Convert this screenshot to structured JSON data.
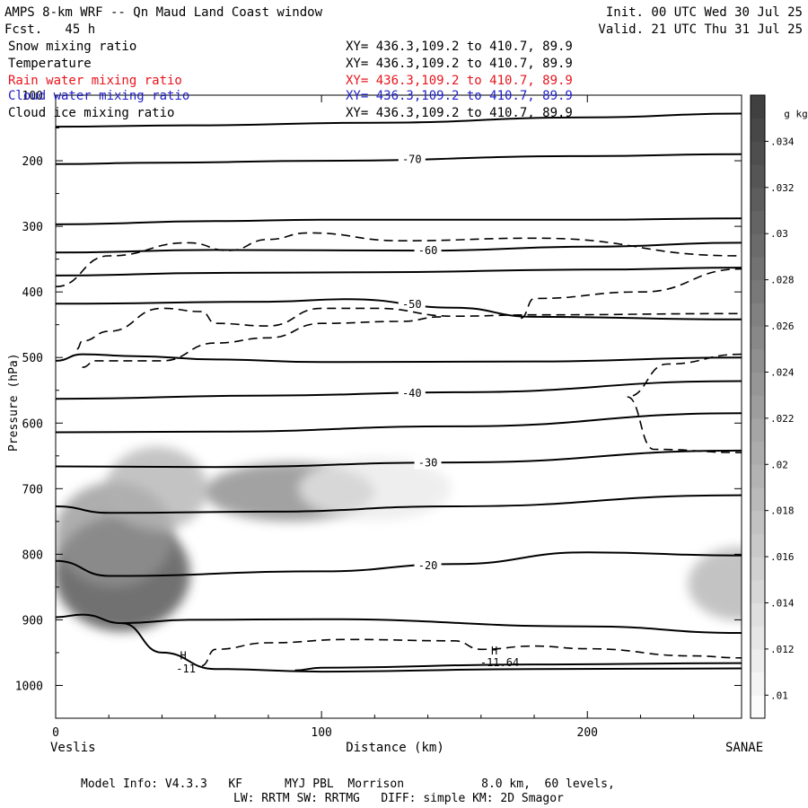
{
  "header": {
    "title_left": "AMPS 8-km WRF -- Qn Maud Land Coast window",
    "init": "Init. 00 UTC Wed 30 Jul 25",
    "fcst": "Fcst.   45 h",
    "valid": "Valid. 21 UTC Thu 31 Jul 25"
  },
  "fields": [
    {
      "name": "Snow mixing ratio",
      "xy": "XY= 436.3,109.2 to 410.7, 89.9",
      "color": "#000000"
    },
    {
      "name": "Temperature",
      "xy": "XY= 436.3,109.2 to 410.7, 89.9",
      "color": "#000000"
    },
    {
      "name": "Rain water mixing ratio",
      "xy": "XY= 436.3,109.2 to 410.7, 89.9",
      "color": "#e8141c"
    },
    {
      "name": "Cloud water mixing ratio",
      "xy": "XY= 436.3,109.2 to 410.7, 89.9",
      "color": "#1e1ec8"
    },
    {
      "name": "Cloud ice mixing ratio",
      "xy": "XY= 436.3,109.2 to 410.7, 89.9",
      "color": "#000000"
    }
  ],
  "footer": {
    "line1": "Model Info: V4.3.3   KF      MYJ PBL  Morrison           8.0 km,  60 levels,",
    "line2": "LW: RRTM SW: RRTMG   DIFF: simple KM: 2D Smagor"
  },
  "chart_data": {
    "type": "heatmap",
    "title": "",
    "xlabel": "Distance (km)",
    "ylabel": "Pressure (hPa)",
    "xlim": [
      0,
      258
    ],
    "ylim": [
      1050,
      100
    ],
    "y_reversed": true,
    "x_ticks": [
      0,
      100,
      200
    ],
    "y_ticks": [
      100,
      200,
      300,
      400,
      500,
      600,
      700,
      800,
      900,
      1000
    ],
    "x_end_labels": {
      "left": "Veslis",
      "right": "SANAE"
    },
    "colorbar": {
      "unit": "g kg",
      "unit_sup": "-1",
      "range": [
        0.009,
        0.036
      ],
      "ticks": [
        ".01",
        ".012",
        ".014",
        ".016",
        ".018",
        ".02",
        ".022",
        ".024",
        ".026",
        ".028",
        ".03",
        ".032",
        ".034"
      ],
      "tick_values": [
        0.01,
        0.012,
        0.014,
        0.016,
        0.018,
        0.02,
        0.022,
        0.024,
        0.026,
        0.028,
        0.03,
        0.032,
        0.034
      ],
      "low_color": "#ffffff",
      "high_color": "#3c3c3c"
    },
    "shaded_snow_mixing_ratio": [
      {
        "x": 25,
        "p": 830,
        "sx": 16,
        "sp": 55,
        "value": 0.035
      },
      {
        "x": 22,
        "p": 770,
        "sx": 14,
        "sp": 50,
        "value": 0.024
      },
      {
        "x": 38,
        "p": 700,
        "sx": 12,
        "sp": 40,
        "value": 0.02
      },
      {
        "x": 88,
        "p": 705,
        "sx": 20,
        "sp": 28,
        "value": 0.026
      },
      {
        "x": 120,
        "p": 700,
        "sx": 18,
        "sp": 30,
        "value": 0.012
      },
      {
        "x": 257,
        "p": 845,
        "sx": 12,
        "sp": 35,
        "value": 0.02
      }
    ],
    "temperature_isotherms": [
      {
        "label": "-70",
        "label_x": 134,
        "points": [
          [
            0,
            205
          ],
          [
            40,
            203
          ],
          [
            100,
            200
          ],
          [
            200,
            193
          ],
          [
            258,
            190
          ]
        ]
      },
      {
        "label": null,
        "label_x": null,
        "points": [
          [
            0,
            148
          ],
          [
            50,
            146
          ],
          [
            120,
            142
          ],
          [
            200,
            134
          ],
          [
            258,
            128
          ]
        ]
      },
      {
        "label": null,
        "label_x": null,
        "points": [
          [
            0,
            297
          ],
          [
            60,
            292
          ],
          [
            100,
            290
          ],
          [
            200,
            290
          ],
          [
            258,
            288
          ]
        ]
      },
      {
        "label": "-60",
        "label_x": 140,
        "points": [
          [
            0,
            340
          ],
          [
            60,
            336
          ],
          [
            140,
            337
          ],
          [
            200,
            331
          ],
          [
            258,
            325
          ]
        ]
      },
      {
        "label": null,
        "label_x": null,
        "points": [
          [
            0,
            375
          ],
          [
            60,
            371
          ],
          [
            120,
            370
          ],
          [
            200,
            366
          ],
          [
            258,
            363
          ]
        ]
      },
      {
        "label": "-50",
        "label_x": 134,
        "points": [
          [
            0,
            418
          ],
          [
            80,
            415
          ],
          [
            110,
            411
          ],
          [
            150,
            424
          ],
          [
            180,
            438
          ],
          [
            258,
            442
          ]
        ]
      },
      {
        "label": null,
        "label_x": null,
        "points": [
          [
            0,
            505
          ],
          [
            10,
            495
          ],
          [
            30,
            498
          ],
          [
            60,
            503
          ],
          [
            100,
            507
          ],
          [
            180,
            506
          ],
          [
            258,
            500
          ]
        ]
      },
      {
        "label": "-40",
        "label_x": 134,
        "points": [
          [
            0,
            563
          ],
          [
            80,
            558
          ],
          [
            150,
            553
          ],
          [
            258,
            536
          ]
        ]
      },
      {
        "label": null,
        "label_x": null,
        "points": [
          [
            0,
            614
          ],
          [
            60,
            613
          ],
          [
            150,
            605
          ],
          [
            258,
            585
          ]
        ]
      },
      {
        "label": "-30",
        "label_x": 140,
        "points": [
          [
            0,
            666
          ],
          [
            60,
            667
          ],
          [
            150,
            660
          ],
          [
            258,
            642
          ]
        ]
      },
      {
        "label": null,
        "label_x": null,
        "points": [
          [
            0,
            727
          ],
          [
            20,
            737
          ],
          [
            80,
            735
          ],
          [
            150,
            727
          ],
          [
            258,
            710
          ]
        ]
      },
      {
        "label": "-20",
        "label_x": 140,
        "points": [
          [
            0,
            810
          ],
          [
            20,
            833
          ],
          [
            100,
            826
          ],
          [
            150,
            815
          ],
          [
            200,
            797
          ],
          [
            258,
            802
          ]
        ]
      },
      {
        "label": null,
        "label_x": null,
        "points": [
          [
            0,
            896
          ],
          [
            10,
            892
          ],
          [
            25,
            905
          ],
          [
            40,
            950
          ],
          [
            60,
            975
          ],
          [
            100,
            979
          ],
          [
            180,
            975
          ],
          [
            258,
            974
          ]
        ]
      },
      {
        "label": null,
        "label_x": null,
        "points": [
          [
            25,
            905
          ],
          [
            50,
            900
          ],
          [
            100,
            899
          ],
          [
            200,
            910
          ],
          [
            258,
            920
          ]
        ]
      },
      {
        "label": null,
        "label_x": null,
        "points": [
          [
            90,
            977
          ],
          [
            100,
            973
          ],
          [
            180,
            968
          ],
          [
            258,
            966
          ]
        ]
      }
    ],
    "cloud_ice_dashed": [
      {
        "points": [
          [
            0,
            392
          ],
          [
            20,
            345
          ],
          [
            50,
            325
          ],
          [
            65,
            337
          ],
          [
            80,
            320
          ],
          [
            95,
            310
          ],
          [
            130,
            322
          ],
          [
            180,
            318
          ],
          [
            258,
            345
          ]
        ]
      },
      {
        "points": [
          [
            8,
            487
          ],
          [
            10,
            475
          ],
          [
            20,
            460
          ],
          [
            40,
            425
          ],
          [
            55,
            430
          ],
          [
            60,
            448
          ],
          [
            80,
            452
          ],
          [
            100,
            425
          ],
          [
            120,
            425
          ],
          [
            150,
            437
          ],
          [
            180,
            435
          ],
          [
            258,
            433
          ]
        ]
      },
      {
        "points": [
          [
            10,
            515
          ],
          [
            15,
            505
          ],
          [
            40,
            505
          ],
          [
            60,
            478
          ],
          [
            80,
            470
          ],
          [
            100,
            448
          ],
          [
            130,
            445
          ],
          [
            145,
            438
          ]
        ]
      },
      {
        "points": [
          [
            175,
            440
          ],
          [
            180,
            410
          ],
          [
            220,
            400
          ],
          [
            258,
            365
          ]
        ]
      },
      {
        "points": [
          [
            258,
            495
          ],
          [
            230,
            510
          ],
          [
            215,
            560
          ],
          [
            225,
            640
          ],
          [
            258,
            645
          ]
        ]
      },
      {
        "points": [
          [
            55,
            970
          ],
          [
            60,
            945
          ],
          [
            80,
            935
          ],
          [
            110,
            930
          ],
          [
            150,
            932
          ],
          [
            160,
            945
          ],
          [
            180,
            940
          ],
          [
            200,
            944
          ],
          [
            240,
            955
          ],
          [
            258,
            958
          ]
        ]
      }
    ],
    "annotations": [
      {
        "text": "H",
        "x": 48,
        "p": 955
      },
      {
        "text": "-11",
        "x": 49,
        "p": 975
      },
      {
        "text": "H",
        "x": 165,
        "p": 947
      },
      {
        "text": "-11.64",
        "x": 167,
        "p": 965
      }
    ]
  }
}
